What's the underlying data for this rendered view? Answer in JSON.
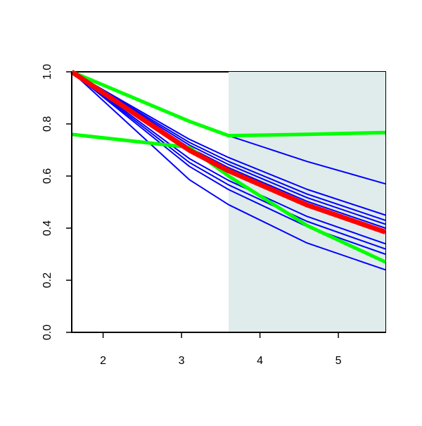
{
  "chart_data": {
    "type": "line",
    "x": [
      1.6,
      3.1,
      3.6,
      4.6,
      5.6
    ],
    "xlim": [
      1.6,
      5.6
    ],
    "ylim": [
      0,
      1
    ],
    "xticks": [
      2,
      3,
      4,
      5
    ],
    "yticks": [
      {
        "value": 0,
        "label": "0.0"
      },
      {
        "value": 0.2,
        "label": "0.2"
      },
      {
        "value": 0.4,
        "label": "0.4"
      },
      {
        "value": 0.6,
        "label": "0.6"
      },
      {
        "value": 0.8,
        "label": "0.8"
      },
      {
        "value": 1,
        "label": "1.0"
      }
    ],
    "shade": {
      "xlim": [
        3.6,
        5.6
      ],
      "color": "#e0ecec"
    },
    "series": [
      {
        "color": "#0000ff",
        "width": 2,
        "values": [
          1.0,
          0.81,
          0.755,
          0.656,
          0.57
        ]
      },
      {
        "color": "#0000ff",
        "width": 2,
        "values": [
          1.0,
          0.741,
          0.671,
          0.549,
          0.45
        ]
      },
      {
        "color": "#0000ff",
        "width": 2,
        "values": [
          1.0,
          0.729,
          0.656,
          0.531,
          0.43
        ]
      },
      {
        "color": "#0000ff",
        "width": 2,
        "values": [
          1.0,
          0.719,
          0.644,
          0.517,
          0.415
        ]
      },
      {
        "color": "#0000ff",
        "width": 2,
        "values": [
          1.0,
          0.709,
          0.632,
          0.503,
          0.4
        ]
      },
      {
        "color": "#0000ff",
        "width": 2,
        "values": [
          1.0,
          0.667,
          0.583,
          0.445,
          0.34
        ]
      },
      {
        "color": "#0000ff",
        "width": 2,
        "values": [
          1.0,
          0.652,
          0.566,
          0.426,
          0.32
        ]
      },
      {
        "color": "#0000ff",
        "width": 2,
        "values": [
          1.0,
          0.637,
          0.548,
          0.406,
          0.3
        ]
      },
      {
        "color": "#0000ff",
        "width": 2,
        "values": [
          1.0,
          0.586,
          0.49,
          0.343,
          0.24
        ]
      },
      {
        "color": "#00ff00",
        "width": 5,
        "values": [
          1.0,
          0.81,
          0.755,
          0.76,
          0.767
        ]
      },
      {
        "color": "#00ff00",
        "width": 5,
        "values": [
          0.76,
          0.71,
          0.6,
          0.41,
          0.27
        ]
      },
      {
        "color": "#ff0000",
        "width": 7,
        "values": [
          1.0,
          0.699,
          0.62,
          0.489,
          0.385
        ]
      }
    ]
  }
}
